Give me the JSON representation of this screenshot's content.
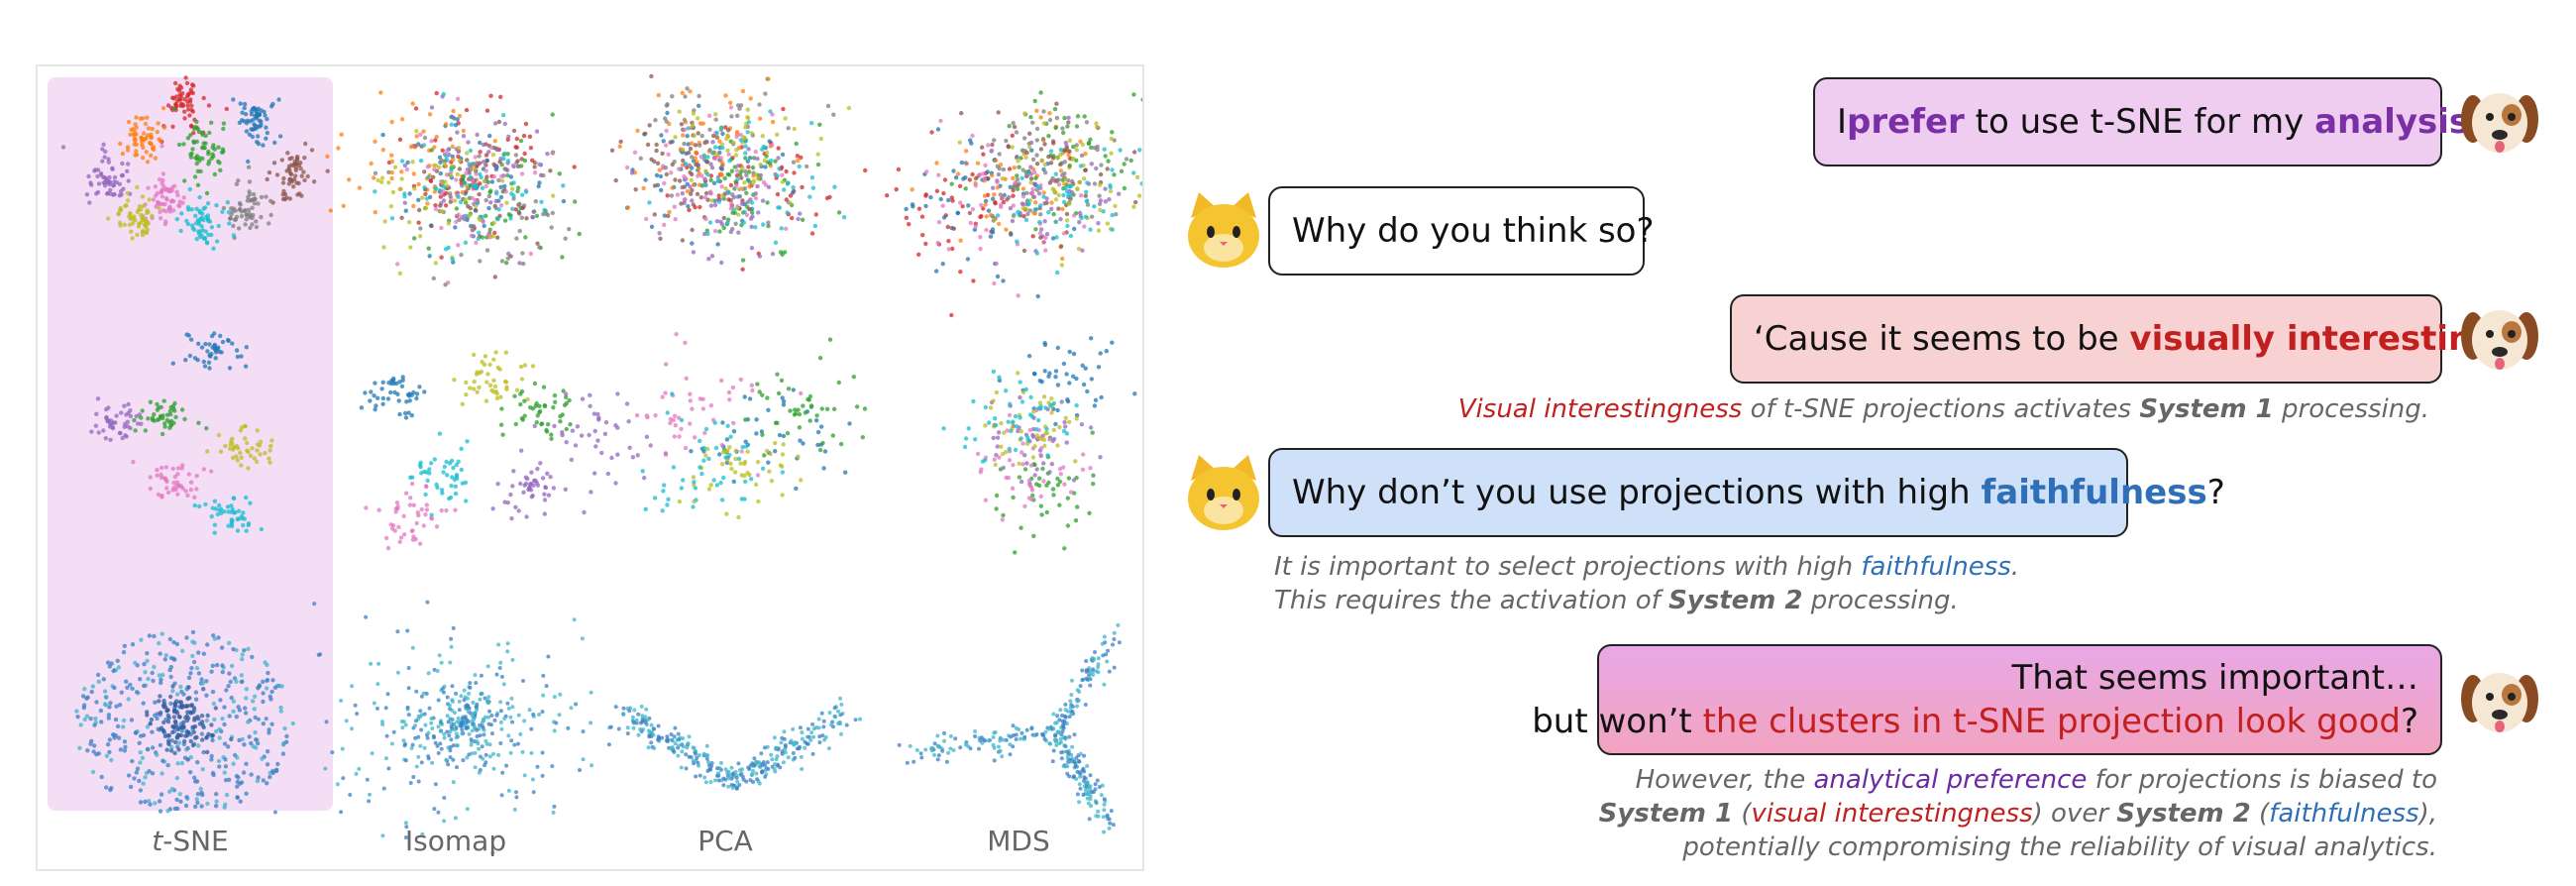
{
  "projections": {
    "labels": [
      "t-SNE",
      "Isomap",
      "PCA",
      "MDS"
    ]
  },
  "colors": {
    "tsne_highlight": "#f3def5",
    "cluster_palette": [
      "#d62728",
      "#1f77b4",
      "#ff7f0e",
      "#2ca02c",
      "#9467bd",
      "#8c564b",
      "#e377c2",
      "#7f7f7f",
      "#bcbd22",
      "#17becf"
    ]
  },
  "chat": {
    "m1": {
      "p1": "I ",
      "k1": "prefer",
      "p2": " to use t-SNE for my ",
      "k2": "analysis",
      "p3": " !"
    },
    "m2": {
      "text": "Why do you think so?"
    },
    "m3": {
      "p1": "‘Cause it seems to be ",
      "k1": "visually interesting",
      "p2": "!!"
    },
    "n3": {
      "k1": "Visual interestingness",
      "p1": " of t-SNE projections activates ",
      "b1": "System 1",
      "p2": " processing."
    },
    "m4": {
      "p1": "Why don’t you use projections with high ",
      "k1": "faithfulness",
      "p2": "?"
    },
    "n4": {
      "l1a": "It is important to select projections with high ",
      "l1k": "faithfulness",
      "l1b": ".",
      "l2a": "This requires the activation of ",
      "l2b": "System 2",
      "l2c": " processing."
    },
    "m5": {
      "line1": "That seems important…",
      "p1": "but won’t ",
      "k1": "the clusters in t-SNE projection look good",
      "p2": "?"
    },
    "n5": {
      "l1a": "However, the ",
      "l1k": "analytical preference",
      "l1b": " for projections is biased to",
      "l2a": "System 1",
      "l2b": " (",
      "l2k1": "visual interestingness",
      "l2c": ") over ",
      "l2d": "System 2",
      "l2e": " (",
      "l2k2": "faithfulness",
      "l2f": "),",
      "l3": "potentially compromising the reliability of visual analytics."
    }
  },
  "avatars": {
    "analyst": "dog-emoji-icon",
    "questioner": "cat-emoji-icon"
  }
}
